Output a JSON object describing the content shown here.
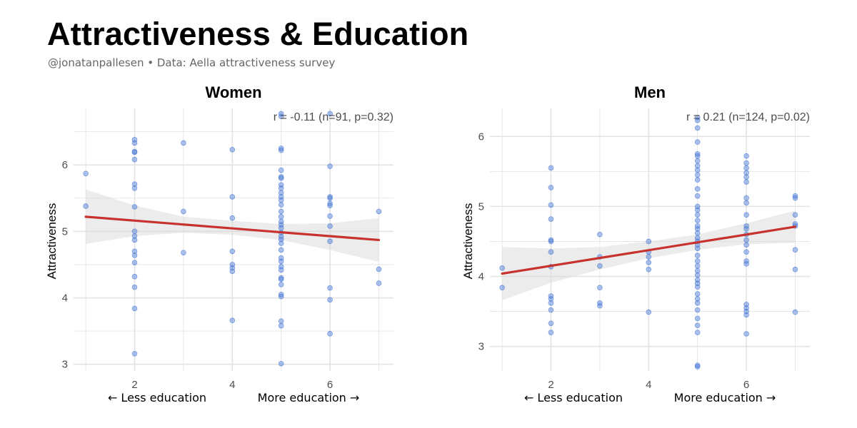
{
  "header": {
    "title": "Attractiveness & Education",
    "subtitle": "@jonatanpallesen • Data: Aella attractiveness survey"
  },
  "colors": {
    "point": "#4a7bd6",
    "regression": "#c8322e",
    "ribbon": "#d9d9d9",
    "grid": "#e3e3e3"
  },
  "chart_data": [
    {
      "type": "scatter",
      "title": "Women",
      "ylabel": "Attractiveness",
      "xlabel_left": "← Less education",
      "xlabel_right": "More education →",
      "annotation": "r = -0.11  (n=91, p=0.32)",
      "xlim": [
        0.75,
        7.3
      ],
      "ylim": [
        2.9,
        6.85
      ],
      "xticks": [
        2,
        4,
        6
      ],
      "yticks": [
        3,
        4,
        5,
        6
      ],
      "regression": {
        "x": [
          1,
          7
        ],
        "y": [
          5.22,
          4.87
        ]
      },
      "ribbon": {
        "x": [
          1,
          2,
          3,
          4,
          5,
          6,
          7
        ],
        "upper": [
          5.63,
          5.39,
          5.22,
          5.16,
          5.11,
          5.12,
          5.2
        ],
        "lower": [
          4.81,
          4.93,
          4.98,
          4.95,
          4.87,
          4.72,
          4.54
        ]
      },
      "points": [
        [
          1,
          5.87
        ],
        [
          1,
          5.38
        ],
        [
          2,
          6.38
        ],
        [
          2,
          6.33
        ],
        [
          2,
          6.2
        ],
        [
          2,
          6.19
        ],
        [
          2,
          6.08
        ],
        [
          2,
          5.71
        ],
        [
          2,
          5.65
        ],
        [
          2,
          5.37
        ],
        [
          2,
          5.0
        ],
        [
          2,
          4.93
        ],
        [
          2,
          4.87
        ],
        [
          2,
          4.7
        ],
        [
          2,
          4.64
        ],
        [
          2,
          4.53
        ],
        [
          2,
          4.32
        ],
        [
          2,
          4.16
        ],
        [
          2,
          3.84
        ],
        [
          2,
          3.16
        ],
        [
          3,
          6.33
        ],
        [
          3,
          5.3
        ],
        [
          3,
          4.68
        ],
        [
          4,
          6.23
        ],
        [
          4,
          5.52
        ],
        [
          4,
          5.2
        ],
        [
          4,
          4.7
        ],
        [
          4,
          4.5
        ],
        [
          4,
          4.45
        ],
        [
          4,
          4.4
        ],
        [
          4,
          3.66
        ],
        [
          5,
          6.77
        ],
        [
          5,
          6.73
        ],
        [
          5,
          6.25
        ],
        [
          5,
          6.22
        ],
        [
          5,
          5.92
        ],
        [
          5,
          5.82
        ],
        [
          5,
          5.8
        ],
        [
          5,
          5.7
        ],
        [
          5,
          5.65
        ],
        [
          5,
          5.58
        ],
        [
          5,
          5.52
        ],
        [
          5,
          5.47
        ],
        [
          5,
          5.4
        ],
        [
          5,
          5.3
        ],
        [
          5,
          5.22
        ],
        [
          5,
          5.15
        ],
        [
          5,
          5.1
        ],
        [
          5,
          5.05
        ],
        [
          5,
          4.98
        ],
        [
          5,
          4.92
        ],
        [
          5,
          4.88
        ],
        [
          5,
          4.82
        ],
        [
          5,
          4.72
        ],
        [
          5,
          4.6
        ],
        [
          5,
          4.55
        ],
        [
          5,
          4.47
        ],
        [
          5,
          4.42
        ],
        [
          5,
          4.3
        ],
        [
          5,
          4.28
        ],
        [
          5,
          4.2
        ],
        [
          5,
          4.05
        ],
        [
          5,
          4.02
        ],
        [
          5,
          3.65
        ],
        [
          5,
          3.58
        ],
        [
          5,
          3.01
        ],
        [
          6,
          6.77
        ],
        [
          6,
          5.98
        ],
        [
          6,
          5.52
        ],
        [
          6,
          5.5
        ],
        [
          6,
          5.42
        ],
        [
          6,
          5.39
        ],
        [
          6,
          5.23
        ],
        [
          6,
          5.08
        ],
        [
          6,
          4.85
        ],
        [
          6,
          4.15
        ],
        [
          6,
          3.97
        ],
        [
          6,
          3.46
        ],
        [
          7,
          5.3
        ],
        [
          7,
          4.43
        ],
        [
          7,
          4.22
        ]
      ]
    },
    {
      "type": "scatter",
      "title": "Men",
      "ylabel": "Attractiveness",
      "xlabel_left": "← Less education",
      "xlabel_right": "More education →",
      "annotation": "r = 0.21  (n=124, p=0.02)",
      "xlim": [
        0.75,
        7.3
      ],
      "ylim": [
        2.65,
        6.4
      ],
      "xticks": [
        2,
        4,
        6
      ],
      "yticks": [
        3,
        4,
        5,
        6
      ],
      "regression": {
        "x": [
          1,
          7
        ],
        "y": [
          4.04,
          4.71
        ]
      },
      "ribbon": {
        "x": [
          1,
          2,
          3,
          4,
          5,
          6,
          7
        ],
        "upper": [
          4.42,
          4.4,
          4.42,
          4.5,
          4.6,
          4.76,
          4.94
        ],
        "lower": [
          3.66,
          3.91,
          4.1,
          4.26,
          4.38,
          4.46,
          4.48
        ]
      },
      "points": [
        [
          1,
          4.12
        ],
        [
          1,
          3.84
        ],
        [
          2,
          5.55
        ],
        [
          2,
          5.27
        ],
        [
          2,
          5.02
        ],
        [
          2,
          4.82
        ],
        [
          2,
          4.52
        ],
        [
          2,
          4.5
        ],
        [
          2,
          4.35
        ],
        [
          2,
          4.14
        ],
        [
          2,
          3.72
        ],
        [
          2,
          3.68
        ],
        [
          2,
          3.62
        ],
        [
          2,
          3.52
        ],
        [
          2,
          3.33
        ],
        [
          2,
          3.2
        ],
        [
          3,
          4.6
        ],
        [
          3,
          4.28
        ],
        [
          3,
          4.15
        ],
        [
          3,
          3.84
        ],
        [
          3,
          3.62
        ],
        [
          3,
          3.58
        ],
        [
          4,
          4.5
        ],
        [
          4,
          4.35
        ],
        [
          4,
          4.28
        ],
        [
          4,
          4.2
        ],
        [
          4,
          4.1
        ],
        [
          4,
          3.49
        ],
        [
          5,
          6.27
        ],
        [
          5,
          6.23
        ],
        [
          5,
          6.12
        ],
        [
          5,
          5.92
        ],
        [
          5,
          5.75
        ],
        [
          5,
          5.72
        ],
        [
          5,
          5.65
        ],
        [
          5,
          5.58
        ],
        [
          5,
          5.52
        ],
        [
          5,
          5.45
        ],
        [
          5,
          5.38
        ],
        [
          5,
          5.25
        ],
        [
          5,
          5.15
        ],
        [
          5,
          5.0
        ],
        [
          5,
          4.95
        ],
        [
          5,
          4.88
        ],
        [
          5,
          4.8
        ],
        [
          5,
          4.72
        ],
        [
          5,
          4.68
        ],
        [
          5,
          4.62
        ],
        [
          5,
          4.55
        ],
        [
          5,
          4.5
        ],
        [
          5,
          4.45
        ],
        [
          5,
          4.4
        ],
        [
          5,
          4.3
        ],
        [
          5,
          4.22
        ],
        [
          5,
          4.15
        ],
        [
          5,
          4.08
        ],
        [
          5,
          4.02
        ],
        [
          5,
          3.95
        ],
        [
          5,
          3.9
        ],
        [
          5,
          3.85
        ],
        [
          5,
          3.75
        ],
        [
          5,
          3.68
        ],
        [
          5,
          3.62
        ],
        [
          5,
          3.52
        ],
        [
          5,
          3.4
        ],
        [
          5,
          3.3
        ],
        [
          5,
          3.2
        ],
        [
          5,
          2.73
        ],
        [
          5,
          2.71
        ],
        [
          6,
          5.72
        ],
        [
          6,
          5.62
        ],
        [
          6,
          5.55
        ],
        [
          6,
          5.48
        ],
        [
          6,
          5.42
        ],
        [
          6,
          5.35
        ],
        [
          6,
          5.12
        ],
        [
          6,
          5.05
        ],
        [
          6,
          4.88
        ],
        [
          6,
          4.72
        ],
        [
          6,
          4.68
        ],
        [
          6,
          4.6
        ],
        [
          6,
          4.52
        ],
        [
          6,
          4.45
        ],
        [
          6,
          4.35
        ],
        [
          6,
          4.22
        ],
        [
          6,
          4.18
        ],
        [
          6,
          3.6
        ],
        [
          6,
          3.55
        ],
        [
          6,
          3.5
        ],
        [
          6,
          3.45
        ],
        [
          6,
          3.18
        ],
        [
          7,
          5.15
        ],
        [
          7,
          5.12
        ],
        [
          7,
          4.88
        ],
        [
          7,
          4.75
        ],
        [
          7,
          4.72
        ],
        [
          7,
          4.38
        ],
        [
          7,
          4.1
        ],
        [
          7,
          3.49
        ]
      ]
    }
  ]
}
